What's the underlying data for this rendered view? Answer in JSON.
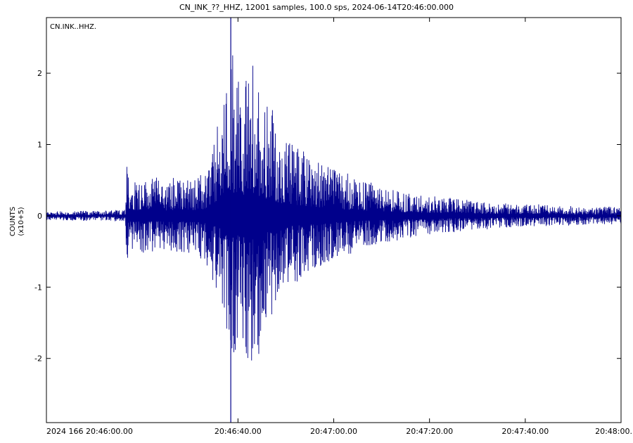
{
  "chart_data": {
    "type": "line",
    "title": "CN_INK_??_HHZ, 12001 samples, 100.0 sps, 2024-06-14T20:46:00.000",
    "trace_label": "CN.INK..HHZ.",
    "ylabel": "COUNTS",
    "ylabel_scale": "(x10+5)",
    "ylim": [
      -2.9,
      2.78
    ],
    "yticks": [
      -2,
      -1,
      0,
      1,
      2
    ],
    "ytick_labels": [
      "-2",
      "-1",
      "0",
      "1",
      "2"
    ],
    "xlim": [
      0,
      120
    ],
    "x_unit": "seconds after 2024-06-14T20:46:00.000",
    "xticks": [
      0,
      40,
      60,
      80,
      100,
      120
    ],
    "xtick_labels": [
      "2024 166 20:46:00.00",
      "20:46:40.00",
      "20:47:00.00",
      "20:47:20.00",
      "20:47:40.00",
      "20:48:00."
    ],
    "marker_line_x": 38.5,
    "line_color": "#00008b",
    "envelope": {
      "t": [
        0,
        10,
        16.5,
        16.6,
        17.5,
        25,
        33,
        37,
        38.5,
        40,
        43,
        46,
        50,
        55,
        60,
        65,
        70,
        80,
        90,
        100,
        110,
        120
      ],
      "pos": [
        0.06,
        0.07,
        0.08,
        0.72,
        0.55,
        0.5,
        0.55,
        1.6,
        2.4,
        1.8,
        2.1,
        1.6,
        1.05,
        0.85,
        0.65,
        0.52,
        0.4,
        0.28,
        0.2,
        0.16,
        0.14,
        0.12
      ],
      "neg": [
        -0.06,
        -0.07,
        -0.08,
        -0.8,
        -0.55,
        -0.5,
        -0.6,
        -1.3,
        -2.05,
        -1.8,
        -2.2,
        -1.55,
        -1.0,
        -0.8,
        -0.6,
        -0.48,
        -0.38,
        -0.26,
        -0.19,
        -0.15,
        -0.13,
        -0.11
      ]
    }
  }
}
